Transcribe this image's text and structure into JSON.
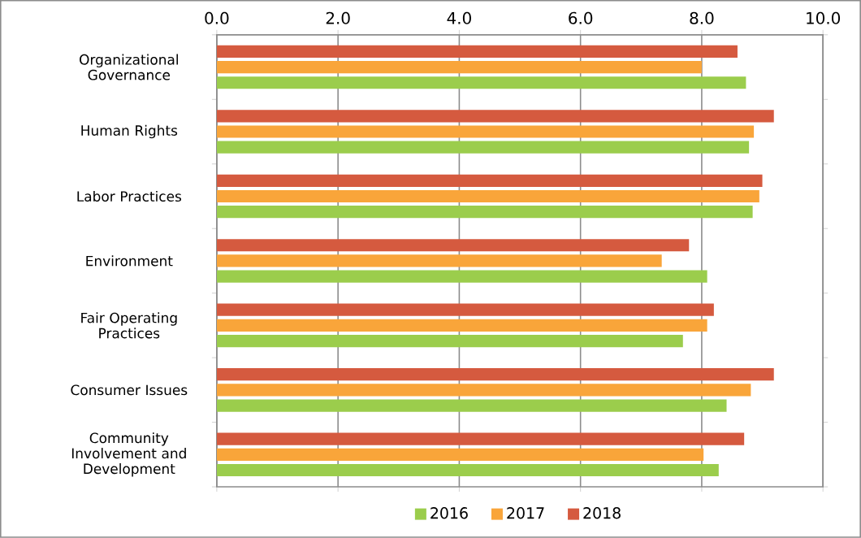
{
  "chart_data": {
    "type": "bar",
    "orientation": "horizontal",
    "categories": [
      "Organizational Governance",
      "Human Rights",
      "Labor Practices",
      "Environment",
      "Fair Operating Practices",
      "Consumer Issues",
      "Community Involvement and Development"
    ],
    "series": [
      {
        "name": "2016",
        "color": "#9bcd4c",
        "values": [
          8.73,
          8.78,
          8.84,
          8.09,
          7.69,
          8.41,
          8.28
        ]
      },
      {
        "name": "2017",
        "color": "#f9a53a",
        "values": [
          8.0,
          8.86,
          8.95,
          7.34,
          8.09,
          8.81,
          8.03
        ]
      },
      {
        "name": "2018",
        "color": "#d55a3f",
        "values": [
          8.59,
          9.19,
          9.0,
          7.79,
          8.2,
          9.19,
          8.7
        ]
      }
    ],
    "xlim": [
      0,
      10
    ],
    "xticks": [
      {
        "value": 0,
        "label": "0.0"
      },
      {
        "value": 2,
        "label": "2.0"
      },
      {
        "value": 4,
        "label": "4.0"
      },
      {
        "value": 6,
        "label": "6.0"
      },
      {
        "value": 8,
        "label": "8.0"
      },
      {
        "value": 10,
        "label": "10.0"
      }
    ],
    "grid": "x",
    "legend": "bottom"
  }
}
